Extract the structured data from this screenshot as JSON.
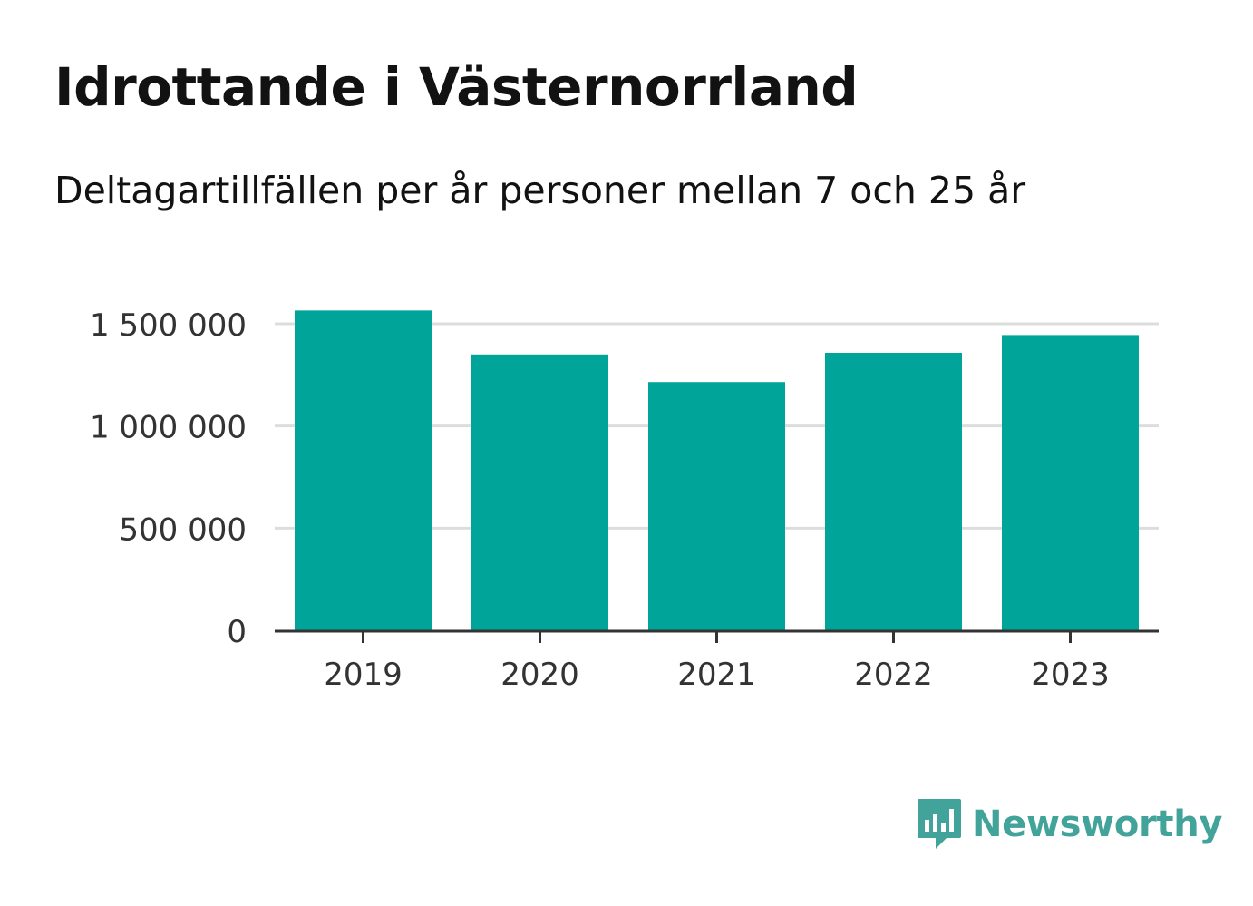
{
  "title": "Idrottande i Västernorrland",
  "subtitle": "Deltagartillfällen per år personer mellan 7 och 25 år",
  "brand": {
    "name": "Newsworthy",
    "color": "#42a39b",
    "icon": "speech-bubble-bar-chart-icon"
  },
  "chart_data": {
    "type": "bar",
    "categories": [
      "2019",
      "2020",
      "2021",
      "2022",
      "2023"
    ],
    "values": [
      1565000,
      1350000,
      1215000,
      1358000,
      1445000
    ],
    "ylim": [
      0,
      1500000
    ],
    "yticks": [
      0,
      500000,
      1000000,
      1500000
    ],
    "ytick_labels": [
      "0",
      "500 000",
      "1 000 000",
      "1 500 000"
    ],
    "xlabel": "",
    "ylabel": "",
    "grid": true,
    "bar_color": "#00a499"
  }
}
